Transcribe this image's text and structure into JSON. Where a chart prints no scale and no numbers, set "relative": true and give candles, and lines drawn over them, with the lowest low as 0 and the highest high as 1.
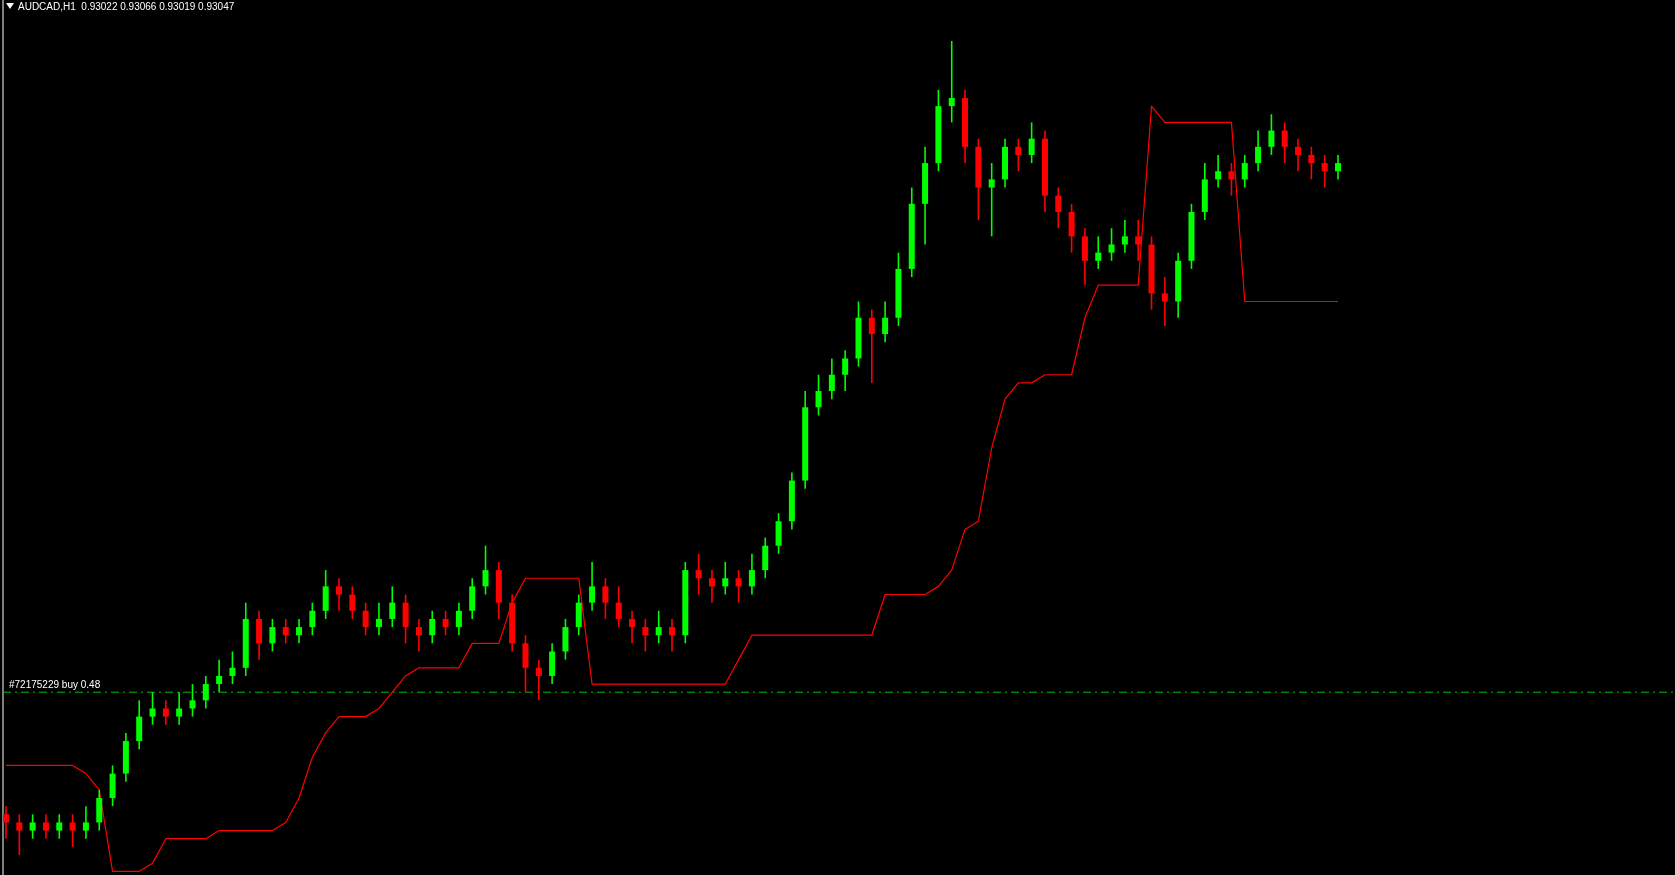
{
  "chart_data": {
    "type": "candlestick",
    "title": "AUDCAD,H1  0.93022 0.93066 0.93019 0.93047",
    "relative": true,
    "categories": [
      null,
      null,
      null,
      null,
      null,
      null,
      null,
      null,
      null,
      null,
      null,
      null,
      null,
      null,
      null,
      null,
      null,
      null,
      null,
      null,
      null,
      null,
      null,
      null,
      null,
      null,
      null,
      null,
      null,
      null,
      null,
      null,
      null,
      null,
      null,
      null,
      null,
      null,
      null,
      null,
      null,
      null,
      null,
      null,
      null,
      null,
      null,
      null,
      null,
      null,
      null,
      null,
      null,
      null,
      null,
      null,
      null,
      null,
      null,
      null,
      null,
      null,
      null,
      null,
      null,
      null,
      null,
      null,
      null,
      null,
      null,
      null,
      null,
      null,
      null,
      null,
      null,
      null,
      null,
      null,
      null,
      null,
      null,
      null,
      null,
      null,
      null,
      null,
      null,
      null,
      null,
      null,
      null,
      null,
      null,
      null,
      null,
      null,
      null,
      null,
      null
    ],
    "ohlc": [
      [
        0.05,
        0.06,
        0.02,
        0.04
      ],
      [
        0.04,
        0.05,
        0.0,
        0.03
      ],
      [
        0.03,
        0.05,
        0.02,
        0.04
      ],
      [
        0.04,
        0.05,
        0.02,
        0.03
      ],
      [
        0.03,
        0.05,
        0.02,
        0.04
      ],
      [
        0.04,
        0.05,
        0.01,
        0.03
      ],
      [
        0.03,
        0.06,
        0.02,
        0.04
      ],
      [
        0.04,
        0.08,
        0.03,
        0.07
      ],
      [
        0.07,
        0.11,
        0.06,
        0.1
      ],
      [
        0.1,
        0.15,
        0.09,
        0.14
      ],
      [
        0.14,
        0.19,
        0.13,
        0.17
      ],
      [
        0.17,
        0.2,
        0.16,
        0.18
      ],
      [
        0.18,
        0.19,
        0.16,
        0.17
      ],
      [
        0.17,
        0.2,
        0.16,
        0.18
      ],
      [
        0.18,
        0.21,
        0.17,
        0.19
      ],
      [
        0.19,
        0.22,
        0.18,
        0.21
      ],
      [
        0.21,
        0.24,
        0.2,
        0.22
      ],
      [
        0.22,
        0.25,
        0.21,
        0.23
      ],
      [
        0.23,
        0.31,
        0.22,
        0.29
      ],
      [
        0.29,
        0.3,
        0.24,
        0.26
      ],
      [
        0.26,
        0.29,
        0.25,
        0.28
      ],
      [
        0.28,
        0.29,
        0.26,
        0.27
      ],
      [
        0.27,
        0.29,
        0.26,
        0.28
      ],
      [
        0.28,
        0.31,
        0.27,
        0.3
      ],
      [
        0.3,
        0.35,
        0.29,
        0.33
      ],
      [
        0.33,
        0.34,
        0.3,
        0.32
      ],
      [
        0.32,
        0.33,
        0.29,
        0.3
      ],
      [
        0.3,
        0.31,
        0.27,
        0.28
      ],
      [
        0.28,
        0.31,
        0.27,
        0.29
      ],
      [
        0.29,
        0.33,
        0.28,
        0.31
      ],
      [
        0.31,
        0.32,
        0.26,
        0.28
      ],
      [
        0.28,
        0.29,
        0.25,
        0.27
      ],
      [
        0.27,
        0.3,
        0.26,
        0.29
      ],
      [
        0.29,
        0.3,
        0.27,
        0.28
      ],
      [
        0.28,
        0.31,
        0.27,
        0.3
      ],
      [
        0.3,
        0.34,
        0.29,
        0.33
      ],
      [
        0.33,
        0.38,
        0.32,
        0.35
      ],
      [
        0.35,
        0.36,
        0.29,
        0.31
      ],
      [
        0.31,
        0.32,
        0.25,
        0.26
      ],
      [
        0.26,
        0.27,
        0.2,
        0.23
      ],
      [
        0.23,
        0.24,
        0.19,
        0.22
      ],
      [
        0.22,
        0.26,
        0.21,
        0.25
      ],
      [
        0.25,
        0.29,
        0.24,
        0.28
      ],
      [
        0.28,
        0.32,
        0.27,
        0.31
      ],
      [
        0.31,
        0.36,
        0.3,
        0.33
      ],
      [
        0.33,
        0.34,
        0.29,
        0.31
      ],
      [
        0.31,
        0.33,
        0.28,
        0.29
      ],
      [
        0.29,
        0.3,
        0.26,
        0.28
      ],
      [
        0.28,
        0.29,
        0.25,
        0.27
      ],
      [
        0.27,
        0.3,
        0.26,
        0.28
      ],
      [
        0.28,
        0.29,
        0.25,
        0.27
      ],
      [
        0.27,
        0.36,
        0.26,
        0.35
      ],
      [
        0.35,
        0.37,
        0.32,
        0.34
      ],
      [
        0.34,
        0.35,
        0.31,
        0.33
      ],
      [
        0.33,
        0.36,
        0.32,
        0.34
      ],
      [
        0.34,
        0.35,
        0.31,
        0.33
      ],
      [
        0.33,
        0.37,
        0.32,
        0.35
      ],
      [
        0.35,
        0.39,
        0.34,
        0.38
      ],
      [
        0.38,
        0.42,
        0.37,
        0.41
      ],
      [
        0.41,
        0.47,
        0.4,
        0.46
      ],
      [
        0.46,
        0.57,
        0.45,
        0.55
      ],
      [
        0.55,
        0.59,
        0.54,
        0.57
      ],
      [
        0.57,
        0.61,
        0.56,
        0.59
      ],
      [
        0.59,
        0.62,
        0.57,
        0.61
      ],
      [
        0.61,
        0.68,
        0.6,
        0.66
      ],
      [
        0.66,
        0.67,
        0.58,
        0.64
      ],
      [
        0.64,
        0.68,
        0.63,
        0.66
      ],
      [
        0.66,
        0.74,
        0.65,
        0.72
      ],
      [
        0.72,
        0.82,
        0.71,
        0.8
      ],
      [
        0.8,
        0.87,
        0.75,
        0.85
      ],
      [
        0.85,
        0.94,
        0.84,
        0.92
      ],
      [
        0.92,
        1.0,
        0.9,
        0.93
      ],
      [
        0.93,
        0.94,
        0.85,
        0.87
      ],
      [
        0.87,
        0.88,
        0.78,
        0.82
      ],
      [
        0.82,
        0.85,
        0.76,
        0.83
      ],
      [
        0.83,
        0.88,
        0.82,
        0.87
      ],
      [
        0.87,
        0.88,
        0.84,
        0.86
      ],
      [
        0.86,
        0.9,
        0.85,
        0.88
      ],
      [
        0.88,
        0.89,
        0.79,
        0.81
      ],
      [
        0.81,
        0.82,
        0.77,
        0.79
      ],
      [
        0.79,
        0.8,
        0.74,
        0.76
      ],
      [
        0.76,
        0.77,
        0.7,
        0.73
      ],
      [
        0.73,
        0.76,
        0.72,
        0.74
      ],
      [
        0.74,
        0.77,
        0.73,
        0.75
      ],
      [
        0.75,
        0.78,
        0.74,
        0.76
      ],
      [
        0.76,
        0.78,
        0.73,
        0.75
      ],
      [
        0.75,
        0.76,
        0.67,
        0.69
      ],
      [
        0.69,
        0.71,
        0.65,
        0.68
      ],
      [
        0.68,
        0.74,
        0.66,
        0.73
      ],
      [
        0.73,
        0.8,
        0.72,
        0.79
      ],
      [
        0.79,
        0.85,
        0.78,
        0.83
      ],
      [
        0.83,
        0.86,
        0.82,
        0.84
      ],
      [
        0.84,
        0.85,
        0.81,
        0.83
      ],
      [
        0.83,
        0.86,
        0.82,
        0.85
      ],
      [
        0.85,
        0.89,
        0.84,
        0.87
      ],
      [
        0.87,
        0.91,
        0.86,
        0.89
      ],
      [
        0.89,
        0.9,
        0.85,
        0.87
      ],
      [
        0.87,
        0.88,
        0.84,
        0.86
      ],
      [
        0.86,
        0.87,
        0.83,
        0.85
      ],
      [
        0.85,
        0.86,
        0.82,
        0.84
      ],
      [
        0.84,
        0.86,
        0.83,
        0.85
      ]
    ],
    "colors": [
      "#ff0000",
      "#ff0000",
      "#00ff00",
      "#ff0000",
      "#00ff00",
      "#ff0000",
      "#00ff00",
      "#00ff00",
      "#00ff00",
      "#00ff00",
      "#00ff00",
      "#00ff00",
      "#ff0000",
      "#00ff00",
      "#00ff00",
      "#00ff00",
      "#00ff00",
      "#00ff00",
      "#00ff00",
      "#ff0000",
      "#00ff00",
      "#ff0000",
      "#00ff00",
      "#00ff00",
      "#00ff00",
      "#ff0000",
      "#ff0000",
      "#ff0000",
      "#00ff00",
      "#00ff00",
      "#ff0000",
      "#ff0000",
      "#00ff00",
      "#ff0000",
      "#00ff00",
      "#00ff00",
      "#00ff00",
      "#ff0000",
      "#ff0000",
      "#ff0000",
      "#ff0000",
      "#00ff00",
      "#00ff00",
      "#00ff00",
      "#00ff00",
      "#ff0000",
      "#ff0000",
      "#ff0000",
      "#ff0000",
      "#00ff00",
      "#ff0000",
      "#00ff00",
      "#ff0000",
      "#ff0000",
      "#00ff00",
      "#ff0000",
      "#00ff00",
      "#00ff00",
      "#00ff00",
      "#00ff00",
      "#00ff00",
      "#00ff00",
      "#00ff00",
      "#00ff00",
      "#00ff00",
      "#ff0000",
      "#00ff00",
      "#00ff00",
      "#00ff00",
      "#00ff00",
      "#00ff00",
      "#00ff00",
      "#ff0000",
      "#ff0000",
      "#00ff00",
      "#00ff00",
      "#ff0000",
      "#00ff00",
      "#ff0000",
      "#ff0000",
      "#ff0000",
      "#ff0000",
      "#00ff00",
      "#00ff00",
      "#00ff00",
      "#ff0000",
      "#ff0000",
      "#ff0000",
      "#00ff00",
      "#00ff00",
      "#00ff00",
      "#00ff00",
      "#ff0000",
      "#00ff00",
      "#00ff00",
      "#00ff00",
      "#ff0000",
      "#ff0000",
      "#ff0000",
      "#ff0000",
      "#00ff00"
    ],
    "series": [
      {
        "type": "line",
        "color": "#ff0000",
        "values": [
          0.11,
          0.11,
          0.11,
          0.11,
          0.11,
          0.11,
          0.1,
          0.08,
          -0.02,
          -0.02,
          -0.02,
          -0.01,
          0.02,
          0.02,
          0.02,
          0.02,
          0.03,
          0.03,
          0.03,
          0.03,
          0.03,
          0.04,
          0.07,
          0.12,
          0.15,
          0.17,
          0.17,
          0.17,
          0.18,
          0.2,
          0.22,
          0.23,
          0.23,
          0.23,
          0.23,
          0.26,
          0.26,
          0.26,
          0.31,
          0.34,
          0.34,
          0.34,
          0.34,
          0.34,
          0.21,
          0.21,
          0.21,
          0.21,
          0.21,
          0.21,
          0.21,
          0.21,
          0.21,
          0.21,
          0.21,
          0.24,
          0.27,
          0.27,
          0.27,
          0.27,
          0.27,
          0.27,
          0.27,
          0.27,
          0.27,
          0.27,
          0.32,
          0.32,
          0.32,
          0.32,
          0.33,
          0.35,
          0.4,
          0.41,
          0.5,
          0.56,
          0.58,
          0.58,
          0.59,
          0.59,
          0.59,
          0.66,
          0.7,
          0.7,
          0.7,
          0.7,
          0.92,
          0.9,
          0.9,
          0.9,
          0.9,
          0.9,
          0.9,
          0.68,
          0.68,
          0.68,
          0.68,
          0.68,
          0.68,
          0.68,
          0.68
        ]
      }
    ],
    "ref_lines": [
      {
        "axis": "y",
        "value": 0.2,
        "label": "#72175229 buy 0.48",
        "color": "#00c000",
        "line_style": "dashed"
      }
    ]
  }
}
